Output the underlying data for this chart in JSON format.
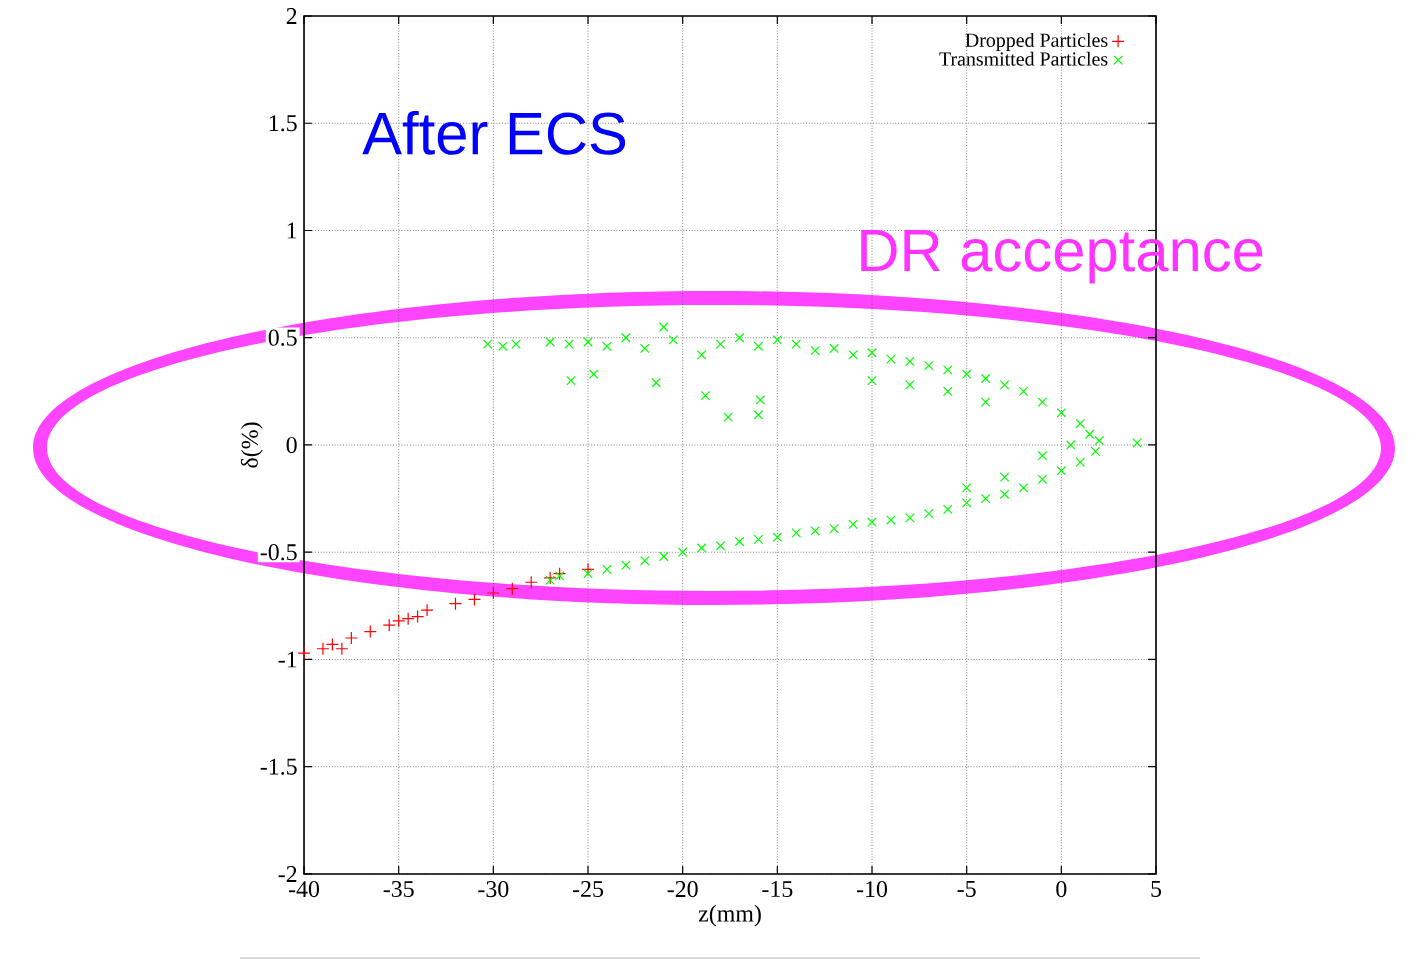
{
  "chart_data": {
    "type": "scatter",
    "xlabel": "z(mm)",
    "ylabel": "δ(%)",
    "xlim": [
      -40,
      5
    ],
    "ylim": [
      -2,
      2
    ],
    "xticks": [
      -40,
      -35,
      -30,
      -25,
      -20,
      -15,
      -10,
      -5,
      0,
      5
    ],
    "yticks": [
      -2,
      -1.5,
      -1,
      -0.5,
      0,
      0.5,
      1,
      1.5,
      2
    ],
    "grid": true,
    "legend": "top right",
    "annotations": [
      "After ECS",
      "DR acceptance"
    ],
    "series": [
      {
        "name": "Dropped Particles",
        "color": "#ff0000",
        "marker": "cross",
        "x": [
          -40,
          -39,
          -38.5,
          -38,
          -37.5,
          -36.5,
          -35.5,
          -35,
          -34.5,
          -34,
          -33.5,
          -32,
          -31,
          -30,
          -29,
          -28,
          -27,
          -26.5,
          -25
        ],
        "values": [
          -0.97,
          -0.95,
          -0.93,
          -0.95,
          -0.9,
          -0.87,
          -0.84,
          -0.82,
          -0.81,
          -0.8,
          -0.77,
          -0.74,
          -0.72,
          -0.69,
          -0.67,
          -0.64,
          -0.62,
          -0.6,
          -0.58
        ]
      },
      {
        "name": "Transmitted Particles",
        "color": "#00ff00",
        "marker": "x",
        "x": [
          -30.3,
          -29.5,
          -28.8,
          -27,
          -26,
          -25,
          -24,
          -23,
          -22,
          -21,
          -20.5,
          -19,
          -18,
          -17,
          -16,
          -15,
          -14,
          -13,
          -12,
          -11,
          -10,
          -9,
          -8,
          -7,
          -6,
          -5,
          -4,
          -3,
          -2,
          -1,
          0,
          1,
          1.5,
          2,
          4,
          1.8,
          1,
          0,
          -1,
          -2,
          -3,
          -4,
          -5,
          -6,
          -7,
          -8,
          -9,
          -10,
          -11,
          -12,
          -13,
          -14,
          -15,
          -16,
          -17,
          -18,
          -19,
          -20,
          -21,
          -22,
          -23,
          -24,
          -25,
          -26.5,
          -27,
          -25.9,
          -18.8,
          -17.6,
          -16,
          -15.9,
          -24.7,
          -21.4,
          -10,
          -8,
          -4,
          -3,
          -5,
          -1,
          0.5,
          -6
        ],
        "values": [
          0.47,
          0.46,
          0.47,
          0.48,
          0.47,
          0.48,
          0.46,
          0.5,
          0.45,
          0.55,
          0.49,
          0.42,
          0.47,
          0.5,
          0.46,
          0.49,
          0.47,
          0.44,
          0.45,
          0.42,
          0.43,
          0.4,
          0.39,
          0.37,
          0.35,
          0.33,
          0.31,
          0.28,
          0.25,
          0.2,
          0.15,
          0.1,
          0.05,
          0.02,
          0.01,
          -0.03,
          -0.08,
          -0.12,
          -0.16,
          -0.2,
          -0.23,
          -0.25,
          -0.27,
          -0.3,
          -0.32,
          -0.34,
          -0.35,
          -0.36,
          -0.37,
          -0.39,
          -0.4,
          -0.41,
          -0.43,
          -0.44,
          -0.45,
          -0.47,
          -0.48,
          -0.5,
          -0.52,
          -0.54,
          -0.56,
          -0.58,
          -0.6,
          -0.61,
          -0.63,
          0.3,
          0.23,
          0.13,
          0.14,
          0.21,
          0.33,
          0.29,
          0.3,
          0.28,
          0.2,
          -0.15,
          -0.2,
          -0.05,
          0.0,
          0.25
        ]
      }
    ]
  }
}
